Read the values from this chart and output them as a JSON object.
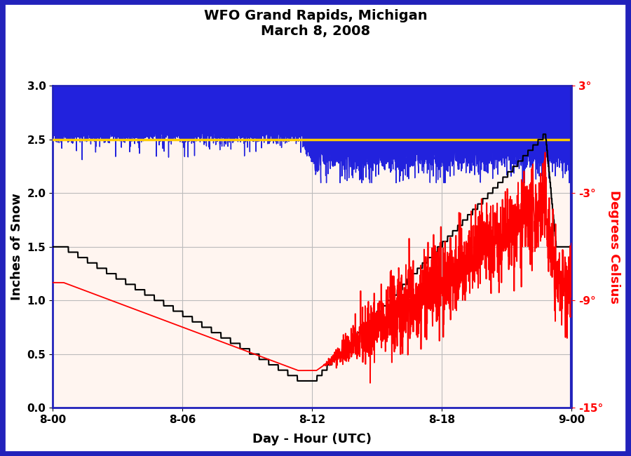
{
  "title_line1": "WFO Grand Rapids, Michigan",
  "title_line2": "March 8, 2008",
  "xlabel": "Day - Hour (UTC)",
  "ylabel_left": "Inches of Snow",
  "ylabel_right": "Degrees Celsius",
  "ylim_left": [
    0.0,
    3.0
  ],
  "ylim_right": [
    -15.0,
    3.0
  ],
  "xlim": [
    0,
    24
  ],
  "xtick_positions": [
    0,
    6,
    12,
    18,
    24
  ],
  "xticklabels": [
    "8-00",
    "8-06",
    "8-12",
    "8-18",
    "9-00"
  ],
  "yticks_left": [
    0.0,
    0.5,
    1.0,
    1.5,
    2.0,
    2.5,
    3.0
  ],
  "yticks_right_vals": [
    3,
    -3,
    -9,
    -15
  ],
  "yticks_right_labels": [
    "3°",
    "-3°",
    "-9°",
    "-15°"
  ],
  "yellow_line_y": 2.5,
  "blue_fill_color": "#2222dd",
  "yellow_line_color": "#ffcc00",
  "snow_line_color": "#000000",
  "temp_line_color": "#ff0000",
  "background_color": "#fff5f0",
  "border_color": "#2222bb",
  "title_fontsize": 14,
  "axis_label_fontsize": 13,
  "tick_fontsize": 11
}
